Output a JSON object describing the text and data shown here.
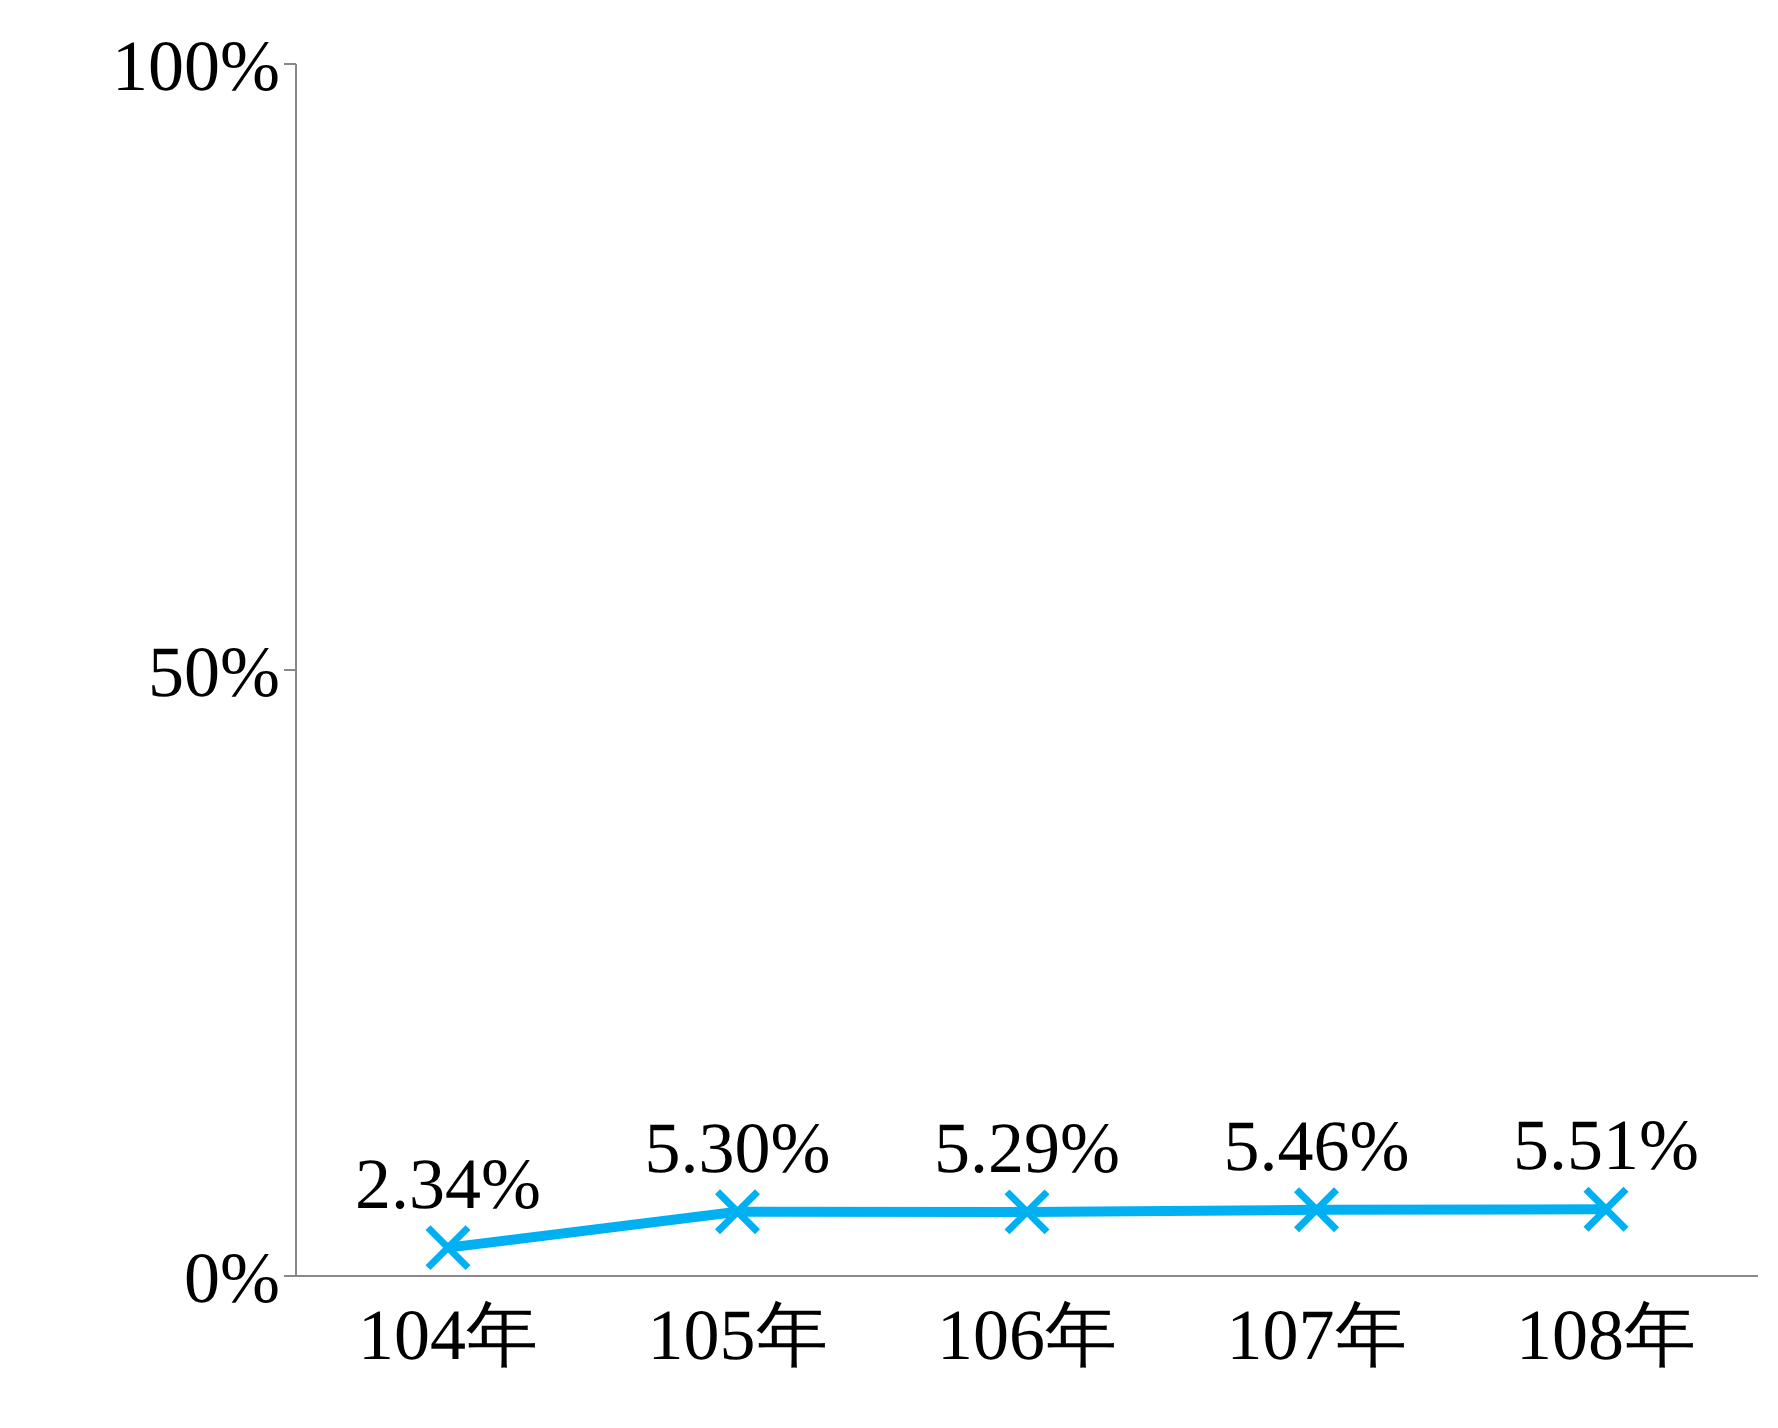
{
  "chart_data": {
    "type": "line",
    "categories": [
      "104年",
      "105年",
      "106年",
      "107年",
      "108年"
    ],
    "series": [
      {
        "color": "#00b0f0",
        "values": [
          2.34,
          5.3,
          5.29,
          5.46,
          5.51
        ],
        "value_labels": [
          "2.34%",
          "5.30%",
          "5.29%",
          "5.46%",
          "5.51%"
        ]
      }
    ],
    "ylim": [
      0,
      100
    ],
    "yticks": [
      {
        "value": 0,
        "label": "0%"
      },
      {
        "value": 50,
        "label": "50%"
      },
      {
        "value": 100,
        "label": "100%"
      }
    ],
    "grid": false,
    "legend": false,
    "marker": "cross",
    "line_style": "solid"
  }
}
